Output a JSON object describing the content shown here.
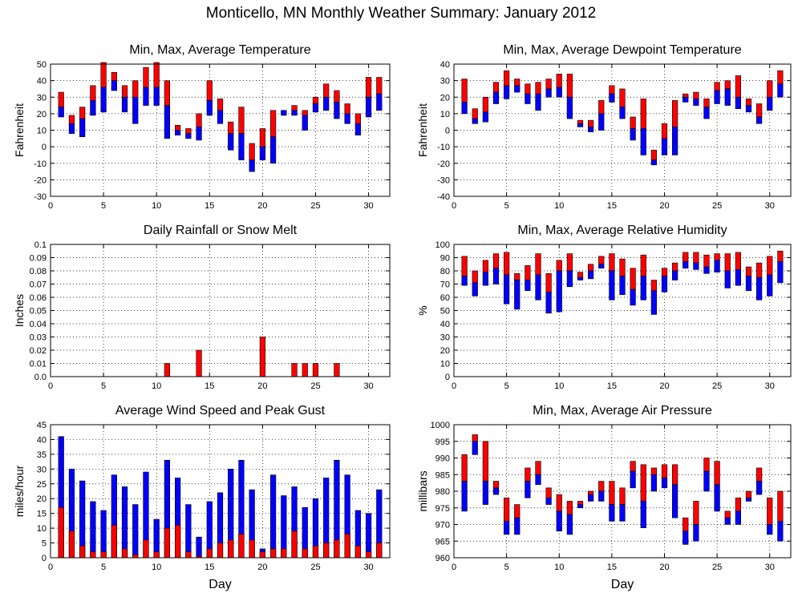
{
  "title": "Monticello, MN Monthly Weather Summary: January 2012",
  "chart_data": [
    {
      "type": "range-bar",
      "title": "Min, Max, Average Temperature",
      "xlabel": "",
      "ylabel": "Fahrenheit",
      "xlim": [
        0,
        32
      ],
      "xticks": [
        0,
        5,
        10,
        15,
        20,
        25,
        30
      ],
      "ylim": [
        -30,
        50
      ],
      "yticks": [
        -30,
        -20,
        -10,
        0,
        10,
        20,
        30,
        40,
        50
      ],
      "grid": true,
      "days": [
        1,
        2,
        3,
        4,
        5,
        6,
        7,
        8,
        9,
        10,
        11,
        12,
        13,
        14,
        15,
        16,
        17,
        18,
        19,
        20,
        21,
        22,
        23,
        24,
        25,
        26,
        27,
        28,
        29,
        30,
        31
      ],
      "min": [
        18,
        8,
        6,
        19,
        21,
        34,
        21,
        14,
        25,
        25,
        5,
        7,
        5,
        4,
        19,
        14,
        -2,
        -8,
        -15,
        -8,
        -10,
        19,
        19,
        10,
        21,
        22,
        17,
        14,
        7,
        18,
        22
      ],
      "avg": [
        24,
        14,
        17,
        28,
        36,
        40,
        30,
        30,
        36,
        36,
        25,
        10,
        8,
        12,
        28,
        22,
        8,
        8,
        -8,
        0,
        6,
        22,
        22,
        19,
        26,
        30,
        27,
        20,
        14,
        30,
        32
      ],
      "max": [
        33,
        19,
        24,
        37,
        51,
        45,
        37,
        40,
        48,
        51,
        40,
        13,
        11,
        20,
        40,
        29,
        15,
        24,
        2,
        11,
        22,
        22,
        25,
        22,
        30,
        38,
        34,
        26,
        20,
        42,
        42
      ],
      "colors": {
        "upper": "#ff0000",
        "lower": "#0000ff"
      }
    },
    {
      "type": "range-bar",
      "title": "Min, Max, Average Dewpoint Temperature",
      "xlabel": "",
      "ylabel": "Fahrenheit",
      "xlim": [
        0,
        32
      ],
      "xticks": [
        0,
        5,
        10,
        15,
        20,
        25,
        30
      ],
      "ylim": [
        -40,
        40
      ],
      "yticks": [
        -40,
        -30,
        -20,
        -10,
        0,
        10,
        20,
        30,
        40
      ],
      "grid": true,
      "days": [
        1,
        2,
        3,
        4,
        5,
        6,
        7,
        8,
        9,
        10,
        11,
        12,
        13,
        14,
        15,
        16,
        17,
        18,
        19,
        20,
        21,
        22,
        23,
        24,
        25,
        26,
        27,
        28,
        29,
        30,
        31
      ],
      "min": [
        10,
        4,
        5,
        16,
        19,
        23,
        16,
        12,
        20,
        20,
        7,
        2,
        -1,
        0,
        17,
        7,
        -6,
        -15,
        -21,
        -15,
        -15,
        17,
        15,
        7,
        16,
        15,
        13,
        11,
        4,
        12,
        20
      ],
      "avg": [
        17,
        7,
        11,
        23,
        27,
        27,
        22,
        22,
        25,
        26,
        20,
        4,
        2,
        10,
        22,
        14,
        1,
        1,
        -18,
        -5,
        2,
        20,
        19,
        14,
        24,
        25,
        20,
        15,
        8,
        20,
        28
      ],
      "max": [
        31,
        13,
        20,
        29,
        36,
        31,
        28,
        29,
        31,
        34,
        34,
        6,
        6,
        18,
        27,
        25,
        8,
        19,
        -12,
        4,
        18,
        22,
        23,
        19,
        29,
        30,
        33,
        19,
        16,
        30,
        36
      ],
      "colors": {
        "upper": "#ff0000",
        "lower": "#0000ff"
      }
    },
    {
      "type": "bar",
      "title": "Daily Rainfall or Snow Melt",
      "xlabel": "",
      "ylabel": "Inches",
      "xlim": [
        0,
        32
      ],
      "xticks": [
        0,
        5,
        10,
        15,
        20,
        25,
        30
      ],
      "ylim": [
        0,
        0.1
      ],
      "yticks": [
        "0.0",
        "0.01",
        "0.02",
        "0.03",
        "0.04",
        "0.05",
        "0.06",
        "0.07",
        "0.08",
        "0.09",
        "0.1"
      ],
      "grid": true,
      "days": [
        11,
        14,
        20,
        23,
        24,
        25,
        27
      ],
      "values": [
        0.01,
        0.02,
        0.03,
        0.01,
        0.01,
        0.01,
        0.01
      ],
      "colors": {
        "bar": "#ff0000"
      }
    },
    {
      "type": "range-bar",
      "title": "Min, Max, Average Relative Humidity",
      "xlabel": "",
      "ylabel": "%",
      "xlim": [
        0,
        32
      ],
      "xticks": [
        0,
        5,
        10,
        15,
        20,
        25,
        30
      ],
      "ylim": [
        0,
        100
      ],
      "yticks": [
        0,
        10,
        20,
        30,
        40,
        50,
        60,
        70,
        80,
        90,
        100
      ],
      "grid": true,
      "days": [
        1,
        2,
        3,
        4,
        5,
        6,
        7,
        8,
        9,
        10,
        11,
        12,
        13,
        14,
        15,
        16,
        17,
        18,
        19,
        20,
        21,
        22,
        23,
        24,
        25,
        26,
        27,
        28,
        29,
        30,
        31
      ],
      "min": [
        69,
        61,
        69,
        70,
        55,
        51,
        65,
        58,
        48,
        49,
        68,
        73,
        74,
        82,
        58,
        62,
        54,
        58,
        47,
        64,
        73,
        82,
        81,
        78,
        79,
        67,
        69,
        65,
        58,
        61,
        71
      ],
      "avg": [
        76,
        71,
        79,
        82,
        77,
        73,
        73,
        77,
        64,
        80,
        80,
        75,
        80,
        85,
        80,
        76,
        66,
        76,
        65,
        76,
        80,
        87,
        86,
        83,
        88,
        80,
        81,
        76,
        75,
        77,
        87
      ],
      "max": [
        91,
        80,
        88,
        93,
        94,
        78,
        84,
        93,
        78,
        88,
        93,
        79,
        85,
        91,
        93,
        89,
        82,
        92,
        73,
        82,
        86,
        94,
        94,
        92,
        93,
        93,
        94,
        83,
        86,
        91,
        95
      ],
      "colors": {
        "upper": "#ff0000",
        "lower": "#0000ff"
      }
    },
    {
      "type": "stacked-bar",
      "title": "Average Wind Speed and Peak Gust",
      "xlabel": "Day",
      "ylabel": "miles/hour",
      "xlim": [
        0,
        32
      ],
      "xticks": [
        0,
        5,
        10,
        15,
        20,
        25,
        30
      ],
      "ylim": [
        0,
        45
      ],
      "yticks": [
        0,
        5,
        10,
        15,
        20,
        25,
        30,
        35,
        40,
        45
      ],
      "grid": true,
      "days": [
        1,
        2,
        3,
        4,
        5,
        6,
        7,
        8,
        9,
        10,
        11,
        12,
        13,
        14,
        15,
        16,
        17,
        18,
        19,
        20,
        21,
        22,
        23,
        24,
        25,
        26,
        27,
        28,
        29,
        30,
        31
      ],
      "average_wind": [
        17,
        9,
        4,
        2,
        2,
        11,
        3,
        1,
        6,
        2,
        10,
        11,
        2,
        0.5,
        3,
        5,
        6,
        8,
        6,
        2,
        3,
        3,
        9,
        3,
        4,
        5,
        6,
        8,
        4,
        2,
        5
      ],
      "peak_gust": [
        41,
        30,
        26,
        19,
        16,
        28,
        24,
        18,
        29,
        13,
        33,
        27,
        18,
        7,
        19,
        22,
        30,
        33,
        23,
        3,
        28,
        21,
        24,
        17,
        20,
        27,
        33,
        28,
        16,
        15,
        23
      ],
      "colors": {
        "average": "#ff0000",
        "gust": "#0000ff"
      }
    },
    {
      "type": "range-bar",
      "title": "Min, Max, Average Air Pressure",
      "xlabel": "Day",
      "ylabel": "millibars",
      "xlim": [
        0,
        32
      ],
      "xticks": [
        0,
        5,
        10,
        15,
        20,
        25,
        30
      ],
      "ylim": [
        960,
        1000
      ],
      "yticks": [
        960,
        965,
        970,
        975,
        980,
        985,
        990,
        995,
        1000
      ],
      "grid": true,
      "days": [
        1,
        2,
        3,
        4,
        5,
        6,
        7,
        8,
        9,
        10,
        11,
        12,
        13,
        14,
        15,
        16,
        17,
        18,
        19,
        20,
        21,
        22,
        23,
        24,
        25,
        26,
        27,
        28,
        29,
        30,
        31
      ],
      "min": [
        974,
        991,
        976,
        979,
        967,
        967,
        978,
        982,
        976,
        968,
        967,
        975,
        977,
        977,
        971,
        971,
        981,
        969,
        980,
        981,
        972,
        964,
        965,
        980,
        974,
        970,
        970,
        977,
        979,
        967,
        965
      ],
      "avg": [
        983,
        995,
        983,
        981,
        971,
        972,
        983,
        985,
        978,
        974,
        973,
        976,
        979,
        980,
        976,
        976,
        986,
        977,
        985,
        984,
        982,
        968,
        970,
        986,
        982,
        972,
        974,
        978,
        983,
        970,
        971
      ],
      "max": [
        991,
        997,
        995,
        983,
        978,
        976,
        987,
        989,
        981,
        979,
        977,
        977,
        980,
        983,
        983,
        981,
        989,
        988,
        987,
        988,
        988,
        972,
        977,
        990,
        989,
        974,
        978,
        980,
        987,
        978,
        980
      ],
      "colors": {
        "upper": "#ff0000",
        "lower": "#0000ff"
      }
    }
  ]
}
